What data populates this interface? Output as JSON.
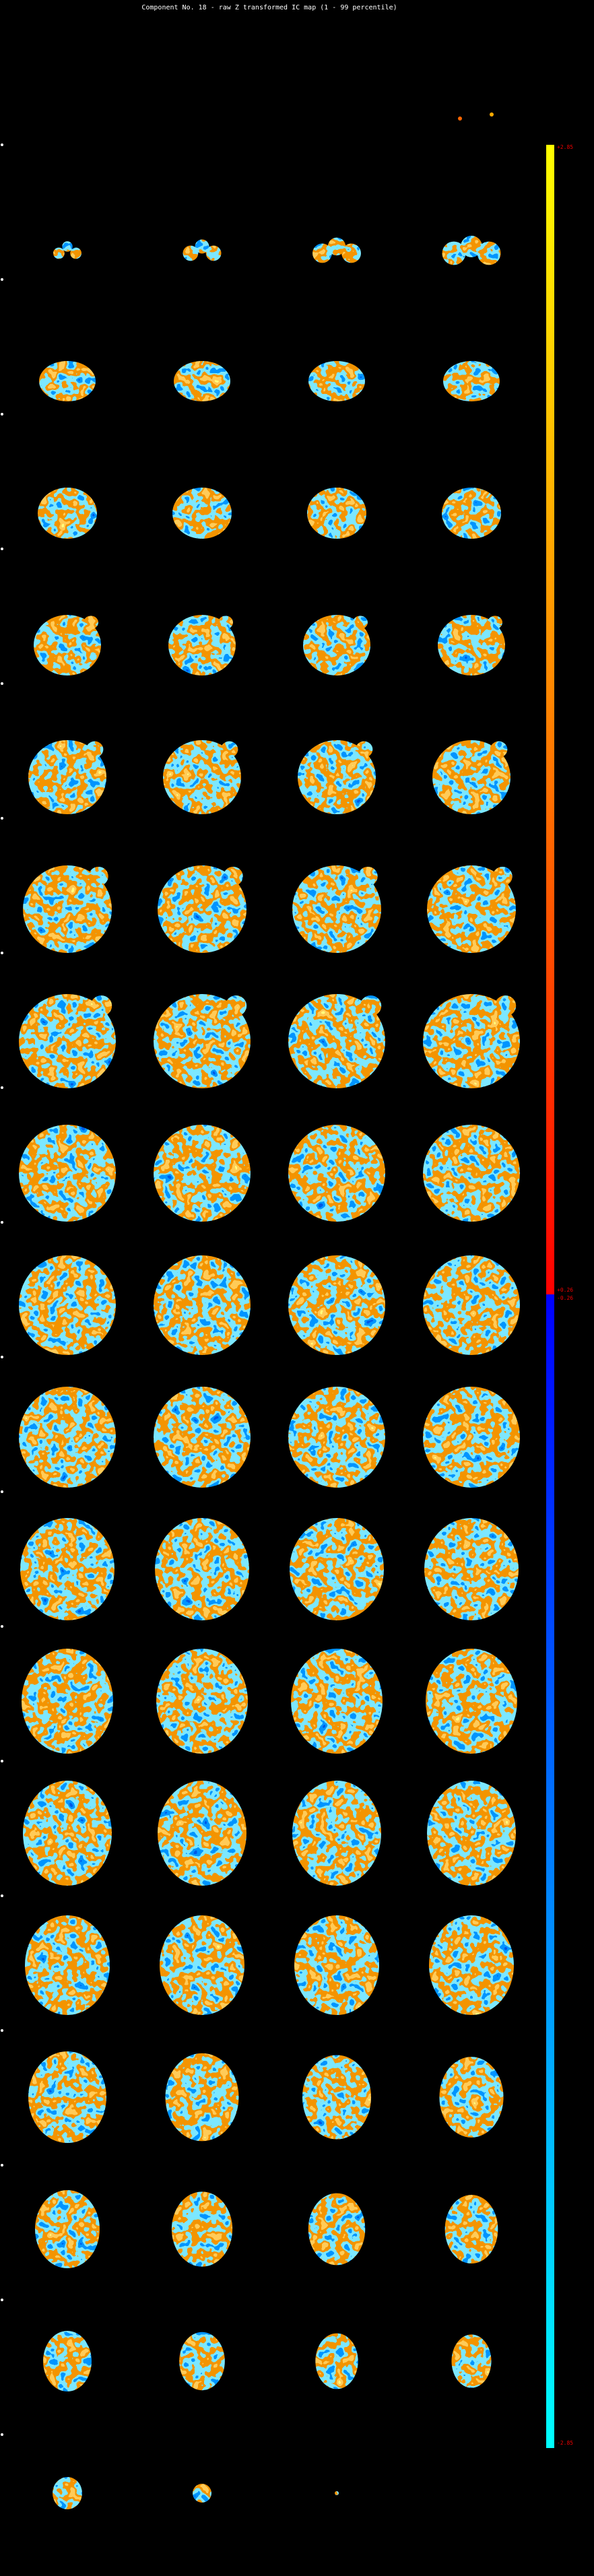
{
  "header": {
    "title": "Component No. 18 - raw Z transformed IC map (1 - 99 percentile)"
  },
  "colorbar": {
    "top_label": "+2.85",
    "mid_upper_label": "+0.26",
    "mid_lower_label": "-0.26",
    "bottom_label": "-2.85"
  }
}
